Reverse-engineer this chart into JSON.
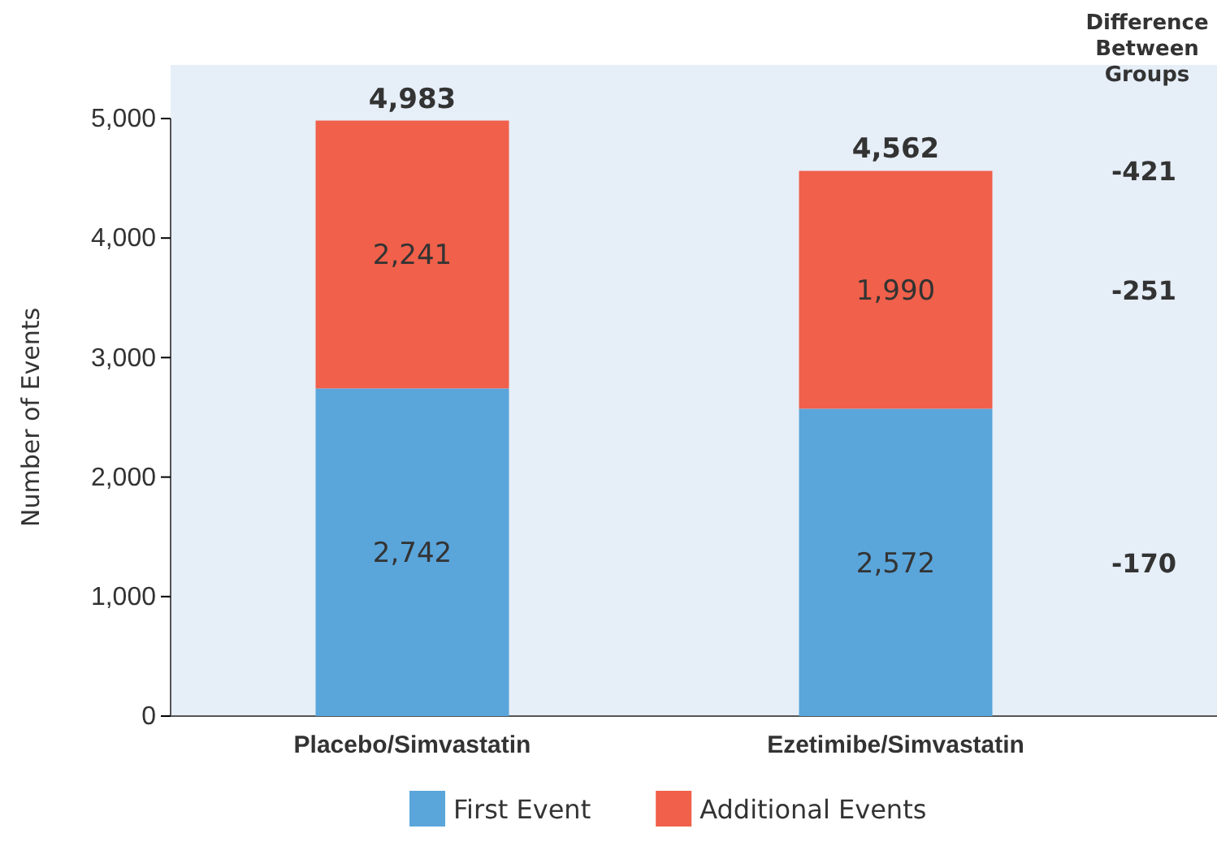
{
  "chart_data": {
    "type": "bar",
    "ylabel": "Number of Events",
    "categories": [
      "Placebo/Simvastatin",
      "Ezetimibe/Simvastatin"
    ],
    "stacked": true,
    "series": [
      {
        "name": "First Event",
        "color": "#5aa5da",
        "values": [
          2742,
          2572
        ],
        "value_labels": [
          "2,742",
          "2,572"
        ]
      },
      {
        "name": "Additional Events",
        "color": "#f0604a",
        "values": [
          2241,
          1990
        ],
        "value_labels": [
          "2,241",
          "1,990"
        ]
      }
    ],
    "totals": [
      "4,983",
      "4,562"
    ],
    "ylim": [
      0,
      5000
    ],
    "yticks": [
      {
        "value": 0,
        "label": "0"
      },
      {
        "value": 1000,
        "label": "1,000"
      },
      {
        "value": 2000,
        "label": "2,000"
      },
      {
        "value": 3000,
        "label": "3,000"
      },
      {
        "value": 4000,
        "label": "4,000"
      },
      {
        "value": 5000,
        "label": "5,000"
      }
    ],
    "annotations": [
      "Difference Between Groups",
      "-421",
      "-251",
      "-170"
    ],
    "legend": "bottom",
    "grid": false
  }
}
